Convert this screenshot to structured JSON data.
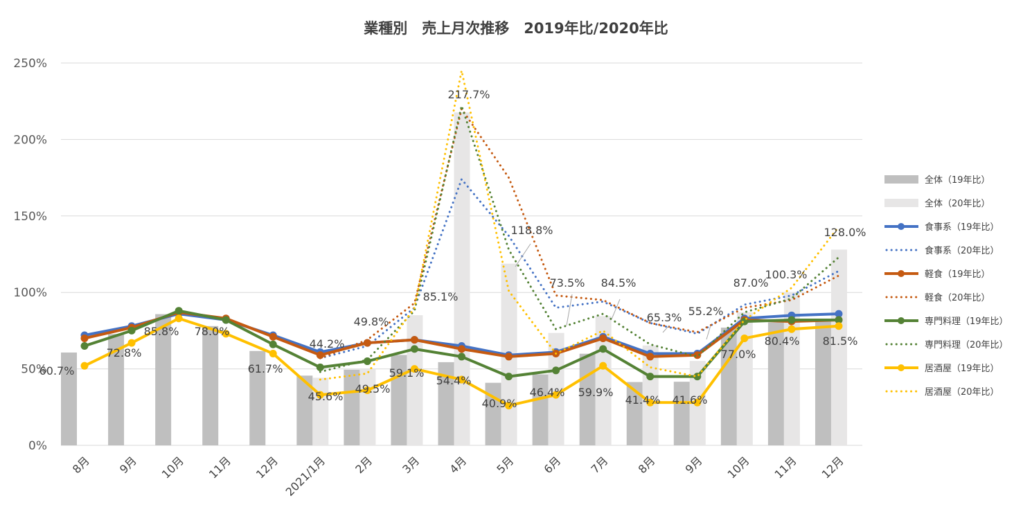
{
  "chart_data": {
    "type": "bar",
    "title": "業種別　売上月次推移　2019年比/2020年比",
    "categories": [
      "8月",
      "9月",
      "10月",
      "11月",
      "12月",
      "2021/1月",
      "2月",
      "3月",
      "4月",
      "5月",
      "6月",
      "7月",
      "8月",
      "9月",
      "10月",
      "11月",
      "12月"
    ],
    "ylim": [
      0,
      2.5
    ],
    "yticks": [
      {
        "value": 0,
        "label": "0%"
      },
      {
        "value": 0.5,
        "label": "50%"
      },
      {
        "value": 1.0,
        "label": "100%"
      },
      {
        "value": 1.5,
        "label": "150%"
      },
      {
        "value": 2.0,
        "label": "200%"
      },
      {
        "value": 2.5,
        "label": "250%"
      }
    ],
    "grid": true,
    "legend_position": "right",
    "series": [
      {
        "name": "全体（19年比）",
        "kind": "bar",
        "color": "#bfbfbf",
        "values": [
          0.607,
          0.728,
          0.858,
          0.78,
          0.617,
          0.456,
          0.495,
          0.591,
          0.544,
          0.409,
          0.464,
          0.599,
          0.414,
          0.416,
          0.77,
          0.804,
          0.815
        ]
      },
      {
        "name": "全体（20年比）",
        "kind": "bar",
        "color": "#e7e6e6",
        "values": [
          null,
          null,
          null,
          null,
          null,
          0.442,
          0.498,
          0.851,
          2.177,
          1.188,
          0.735,
          0.845,
          0.653,
          0.552,
          0.87,
          1.003,
          1.28
        ]
      },
      {
        "name": "食事系（19年比）",
        "kind": "line",
        "style": "solid",
        "color": "#4472c4",
        "values": [
          0.72,
          0.78,
          0.86,
          0.82,
          0.72,
          0.61,
          0.67,
          0.69,
          0.65,
          0.59,
          0.61,
          0.71,
          0.6,
          0.6,
          0.83,
          0.85,
          0.86
        ]
      },
      {
        "name": "食事系（20年比）",
        "kind": "line",
        "style": "dotted",
        "color": "#4472c4",
        "values": [
          null,
          null,
          null,
          null,
          null,
          0.57,
          0.65,
          0.9,
          1.74,
          1.37,
          0.9,
          0.94,
          0.8,
          0.73,
          0.92,
          0.98,
          1.14
        ]
      },
      {
        "name": "軽食（19年比）",
        "kind": "line",
        "style": "solid",
        "color": "#c55a11",
        "values": [
          0.7,
          0.77,
          0.87,
          0.83,
          0.71,
          0.59,
          0.67,
          0.69,
          0.63,
          0.58,
          0.6,
          0.7,
          0.58,
          0.59,
          0.82,
          0.81,
          0.82
        ]
      },
      {
        "name": "軽食（20年比）",
        "kind": "line",
        "style": "dotted",
        "color": "#c55a11",
        "values": [
          null,
          null,
          null,
          null,
          null,
          0.57,
          0.69,
          0.93,
          2.2,
          1.75,
          0.98,
          0.95,
          0.8,
          0.74,
          0.9,
          0.95,
          1.11
        ]
      },
      {
        "name": "専門料理（19年比）",
        "kind": "line",
        "style": "solid",
        "color": "#548235",
        "values": [
          0.65,
          0.75,
          0.88,
          0.82,
          0.66,
          0.51,
          0.55,
          0.63,
          0.58,
          0.45,
          0.49,
          0.63,
          0.45,
          0.45,
          0.81,
          0.82,
          0.82
        ]
      },
      {
        "name": "専門料理（20年比）",
        "kind": "line",
        "style": "dotted",
        "color": "#548235",
        "values": [
          null,
          null,
          null,
          null,
          null,
          0.48,
          0.56,
          0.88,
          2.22,
          1.28,
          0.76,
          0.86,
          0.66,
          0.58,
          0.87,
          0.96,
          1.23
        ]
      },
      {
        "name": "居酒屋（19年比）",
        "kind": "line",
        "style": "solid",
        "color": "#ffc000",
        "values": [
          0.52,
          0.67,
          0.83,
          0.73,
          0.6,
          0.33,
          0.36,
          0.5,
          0.43,
          0.26,
          0.33,
          0.52,
          0.28,
          0.28,
          0.7,
          0.76,
          0.78
        ]
      },
      {
        "name": "居酒屋（20年比）",
        "kind": "line",
        "style": "dotted",
        "color": "#ffc000",
        "values": [
          null,
          null,
          null,
          null,
          null,
          0.43,
          0.47,
          0.9,
          2.45,
          1.01,
          0.6,
          0.75,
          0.51,
          0.45,
          0.82,
          1.03,
          1.43
        ]
      }
    ],
    "data_labels": [
      {
        "text": "60.7%"
      },
      {
        "text": "72.8%"
      },
      {
        "text": "85.8%"
      },
      {
        "text": "78.0%"
      },
      {
        "text": "61.7%"
      },
      {
        "text": "45.6%"
      },
      {
        "text": "44.2%"
      },
      {
        "text": "49.5%"
      },
      {
        "text": "49.8%"
      },
      {
        "text": "59.1%"
      },
      {
        "text": "85.1%"
      },
      {
        "text": "54.4%"
      },
      {
        "text": "217.7%"
      },
      {
        "text": "40.9%"
      },
      {
        "text": "118.8%"
      },
      {
        "text": "46.4%"
      },
      {
        "text": "73.5%"
      },
      {
        "text": "59.9%"
      },
      {
        "text": "84.5%"
      },
      {
        "text": "41.4%"
      },
      {
        "text": "65.3%"
      },
      {
        "text": "41.6%"
      },
      {
        "text": "55.2%"
      },
      {
        "text": "77.0%"
      },
      {
        "text": "87.0%"
      },
      {
        "text": "80.4%"
      },
      {
        "text": "100.3%"
      },
      {
        "text": "81.5%"
      },
      {
        "text": "128.0%"
      }
    ]
  }
}
